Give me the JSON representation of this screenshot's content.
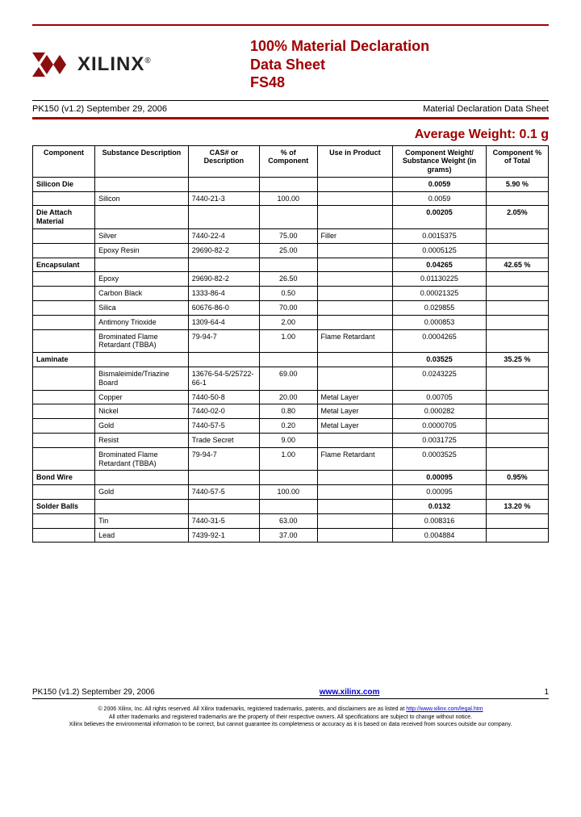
{
  "colors": {
    "brand_red": "#a00000",
    "link_blue": "#0000cc",
    "rule_black": "#000000",
    "text": "#000000"
  },
  "typography": {
    "base_family": "Arial, Helvetica, sans-serif",
    "title_size_pt": 18,
    "avg_weight_size_pt": 16,
    "table_size_pt": 9,
    "footer_fine_pt": 7
  },
  "logo": {
    "name": "XILINX",
    "reg": "®"
  },
  "title": {
    "line1": "100% Material Declaration",
    "line2": "Data Sheet",
    "line3": "FS48"
  },
  "subheader": {
    "left": "PK150 (v1.2) September 29, 2006",
    "right": "Material Declaration Data Sheet"
  },
  "avg_weight_label": "Average Weight: 0.1 g",
  "table": {
    "columns": [
      "Component",
      "Substance Description",
      "CAS# or Description",
      "% of Component",
      "Use in Product",
      "Component Weight/ Substance Weight (in grams)",
      "Component % of Total"
    ],
    "col_align": [
      "left",
      "left",
      "left",
      "center",
      "left",
      "center",
      "center"
    ],
    "groups": [
      {
        "name": "Silicon Die",
        "group_weight": "0.0059",
        "group_pct": "5.90 %",
        "rows": [
          {
            "sub": "Silicon",
            "cas": "7440-21-3",
            "pct": "100.00",
            "use": "",
            "wt": "0.0059"
          }
        ]
      },
      {
        "name": "Die Attach Material",
        "group_weight": "0.00205",
        "group_pct": "2.05%",
        "rows": [
          {
            "sub": "Silver",
            "cas": "7440-22-4",
            "pct": "75.00",
            "use": "Filler",
            "wt": "0.0015375"
          },
          {
            "sub": "Epoxy Resin",
            "cas": "29690-82-2",
            "pct": "25.00",
            "use": "",
            "wt": "0.0005125"
          }
        ]
      },
      {
        "name": "Encapsulant",
        "group_weight": "0.04265",
        "group_pct": "42.65 %",
        "rows": [
          {
            "sub": "Epoxy",
            "cas": "29690-82-2",
            "pct": "26.50",
            "use": "",
            "wt": "0.01130225"
          },
          {
            "sub": "Carbon Black",
            "cas": "1333-86-4",
            "pct": "0.50",
            "use": "",
            "wt": "0.00021325"
          },
          {
            "sub": "Silica",
            "cas": "60676-86-0",
            "pct": "70.00",
            "use": "",
            "wt": "0.029855"
          },
          {
            "sub": "Antimony Trioxide",
            "cas": "1309-64-4",
            "pct": "2.00",
            "use": "",
            "wt": "0.000853"
          },
          {
            "sub": "Brominated Flame Retardant (TBBA)",
            "cas": "79-94-7",
            "pct": "1.00",
            "use": "Flame Retardant",
            "wt": "0.0004265"
          }
        ]
      },
      {
        "name": "Laminate",
        "group_weight": "0.03525",
        "group_pct": "35.25 %",
        "rows": [
          {
            "sub": "Bismaleimide/Triazine Board",
            "cas": "13676-54-5/25722-66-1",
            "pct": "69.00",
            "use": "",
            "wt": "0.0243225"
          },
          {
            "sub": "Copper",
            "cas": "7440-50-8",
            "pct": "20.00",
            "use": "Metal Layer",
            "wt": "0.00705"
          },
          {
            "sub": "Nickel",
            "cas": "7440-02-0",
            "pct": "0.80",
            "use": "Metal Layer",
            "wt": "0.000282"
          },
          {
            "sub": "Gold",
            "cas": "7440-57-5",
            "pct": "0.20",
            "use": "Metal Layer",
            "wt": "0.0000705"
          },
          {
            "sub": "Resist",
            "cas": "Trade Secret",
            "pct": "9.00",
            "use": "",
            "wt": "0.0031725"
          },
          {
            "sub": "Brominated Flame Retardant (TBBA)",
            "cas": "79-94-7",
            "pct": "1.00",
            "use": "Flame Retardant",
            "wt": "0.0003525"
          }
        ]
      },
      {
        "name": "Bond Wire",
        "group_weight": "0.00095",
        "group_pct": "0.95%",
        "rows": [
          {
            "sub": "Gold",
            "cas": "7440-57-5",
            "pct": "100.00",
            "use": "",
            "wt": "0.00095"
          }
        ]
      },
      {
        "name": "Solder Balls",
        "group_weight": "0.0132",
        "group_pct": "13.20 %",
        "rows": [
          {
            "sub": "Tin",
            "cas": "7440-31-5",
            "pct": "63.00",
            "use": "",
            "wt": "0.008316"
          },
          {
            "sub": "Lead",
            "cas": "7439-92-1",
            "pct": "37.00",
            "use": "",
            "wt": "0.004884"
          }
        ]
      }
    ]
  },
  "footer": {
    "left": "PK150 (v1.2) September 29, 2006",
    "link": "www.xilinx.com",
    "pagenum": "1",
    "fine1_a": "© 2006 Xilinx, Inc. All rights reserved. All Xilinx trademarks, registered trademarks, patents, and disclaimers are as listed at ",
    "fine1_link": "http://www.xilinx.com/legal.htm",
    "fine2": "All other trademarks and registered trademarks are the property of their respective owners. All specifications are subject to change without notice.",
    "fine3": "Xilinx believes the environmental information to be correct, but cannot guarantee its completeness or accuracy as it is based on data received from sources outside our company."
  }
}
